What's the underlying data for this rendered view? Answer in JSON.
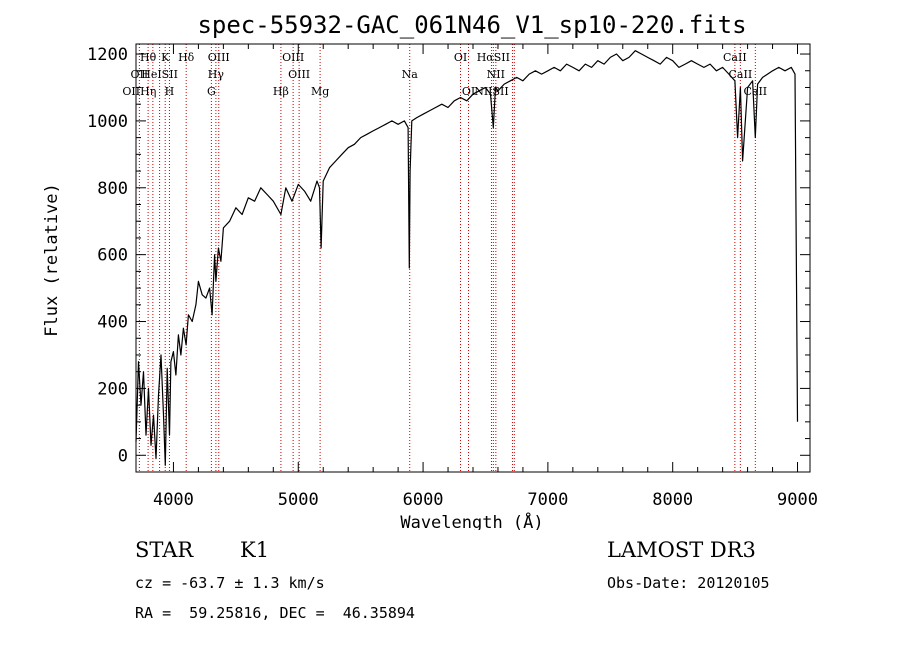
{
  "chart_data": {
    "type": "line",
    "title": "spec-55932-GAC_061N46_V1_sp10-220.fits",
    "xlabel": "Wavelength (Å)",
    "ylabel": "Flux (relative)",
    "xlim": [
      3700,
      9100
    ],
    "ylim": [
      -50,
      1230
    ],
    "xticks": [
      4000,
      5000,
      6000,
      7000,
      8000,
      9000
    ],
    "yticks": [
      0,
      200,
      400,
      600,
      800,
      1000,
      1200
    ],
    "series": [
      {
        "name": "flux",
        "x": [
          3700,
          3720,
          3740,
          3760,
          3780,
          3800,
          3820,
          3840,
          3860,
          3880,
          3900,
          3920,
          3935,
          3950,
          3968,
          3980,
          4000,
          4020,
          4040,
          4060,
          4080,
          4101,
          4120,
          4150,
          4180,
          4200,
          4230,
          4260,
          4290,
          4310,
          4330,
          4340,
          4360,
          4380,
          4400,
          4450,
          4500,
          4550,
          4600,
          4650,
          4700,
          4750,
          4800,
          4861,
          4900,
          4950,
          5000,
          5050,
          5100,
          5150,
          5170,
          5183,
          5200,
          5250,
          5300,
          5350,
          5400,
          5450,
          5500,
          5550,
          5600,
          5650,
          5700,
          5750,
          5800,
          5850,
          5880,
          5890,
          5896,
          5910,
          5950,
          6000,
          6050,
          6100,
          6150,
          6200,
          6250,
          6300,
          6350,
          6400,
          6450,
          6500,
          6540,
          6563,
          6580,
          6600,
          6650,
          6700,
          6750,
          6800,
          6850,
          6900,
          6950,
          7000,
          7050,
          7100,
          7150,
          7200,
          7250,
          7300,
          7350,
          7400,
          7450,
          7500,
          7550,
          7600,
          7650,
          7700,
          7750,
          7800,
          7850,
          7900,
          7950,
          8000,
          8050,
          8100,
          8150,
          8200,
          8250,
          8300,
          8350,
          8400,
          8450,
          8498,
          8520,
          8542,
          8560,
          8600,
          8640,
          8662,
          8680,
          8720,
          8760,
          8800,
          8850,
          8900,
          8950,
          8980,
          9000
        ],
        "y": [
          40,
          280,
          150,
          250,
          60,
          200,
          30,
          120,
          -10,
          180,
          300,
          120,
          -30,
          260,
          60,
          280,
          310,
          240,
          360,
          300,
          380,
          330,
          420,
          400,
          450,
          520,
          480,
          470,
          500,
          420,
          600,
          520,
          620,
          580,
          680,
          700,
          740,
          720,
          770,
          760,
          800,
          780,
          760,
          720,
          800,
          760,
          810,
          790,
          760,
          820,
          800,
          620,
          820,
          860,
          880,
          900,
          920,
          930,
          950,
          960,
          970,
          980,
          990,
          1000,
          990,
          1000,
          980,
          560,
          850,
          1000,
          1010,
          1020,
          1030,
          1040,
          1050,
          1040,
          1060,
          1070,
          1060,
          1080,
          1090,
          1100,
          1080,
          980,
          1100,
          1090,
          1110,
          1120,
          1130,
          1120,
          1140,
          1150,
          1140,
          1150,
          1160,
          1150,
          1170,
          1160,
          1150,
          1170,
          1160,
          1180,
          1170,
          1190,
          1200,
          1180,
          1190,
          1210,
          1200,
          1190,
          1180,
          1170,
          1190,
          1180,
          1160,
          1170,
          1180,
          1170,
          1160,
          1170,
          1150,
          1160,
          1140,
          1120,
          950,
          1100,
          880,
          1100,
          1120,
          950,
          1110,
          1130,
          1140,
          1150,
          1160,
          1150,
          1160,
          1140,
          100
        ]
      }
    ],
    "lines_top": [
      {
        "label": "Hθ",
        "x": 3797
      },
      {
        "label": "K",
        "x": 3934
      },
      {
        "label": "Hδ",
        "x": 4102
      },
      {
        "label": "OIII",
        "x": 4363
      },
      {
        "label": "OIII",
        "x": 4959
      },
      {
        "label": "OI",
        "x": 6300
      },
      {
        "label": "HαSII",
        "x": 6563
      },
      {
        "label": "CaII",
        "x": 8498
      }
    ],
    "lines_mid": [
      {
        "label": "OII",
        "x": 3727
      },
      {
        "label": "HeISII",
        "x": 3889
      },
      {
        "label": "Hγ",
        "x": 4340
      },
      {
        "label": "OIII",
        "x": 5007
      },
      {
        "label": "Na",
        "x": 5893
      },
      {
        "label": "NII",
        "x": 6583
      },
      {
        "label": "CaII",
        "x": 8542
      }
    ],
    "lines_low": [
      {
        "label": "OIIHη",
        "x": 3727
      },
      {
        "label": "H",
        "x": 3968
      },
      {
        "label": "G",
        "x": 4304
      },
      {
        "label": "Hβ",
        "x": 4861
      },
      {
        "label": "Mg",
        "x": 5175
      },
      {
        "label": "OI",
        "x": 6364
      },
      {
        "label": "NIISII",
        "x": 6548
      },
      {
        "label": "CaII",
        "x": 8662
      }
    ],
    "marker_lines": [
      3727,
      3797,
      3835,
      3889,
      3934,
      3968,
      4102,
      4304,
      4340,
      4363,
      4861,
      4959,
      5007,
      5175,
      5893,
      6300,
      6364,
      6548,
      6563,
      6583,
      6716,
      6731,
      8498,
      8542,
      8662
    ],
    "marker_color": "#cc0000"
  },
  "info": {
    "class": "STAR",
    "subclass": "K1",
    "survey": "LAMOST DR3",
    "cz": "cz = -63.7 ± 1.3 km/s",
    "obs_date": "Obs-Date: 20120105",
    "radec": "RA =  59.25816, DEC =  46.35894"
  }
}
